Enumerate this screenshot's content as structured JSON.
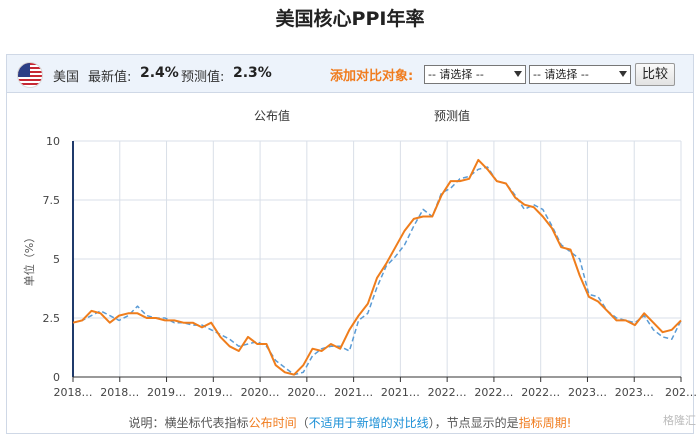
{
  "page": {
    "title": "美国核心PPI年率"
  },
  "toolbar": {
    "country": "美国",
    "latest_label": "最新值:",
    "latest_value": "2.4%",
    "forecast_label": "预测值:",
    "forecast_value": "2.3%",
    "compare_label": "添加对比对象:",
    "select1": "-- 请选择 --",
    "select2": "-- 请选择 --",
    "compare_button": "比较",
    "flag_icon": "us-flag-icon"
  },
  "colors": {
    "actual": "#ef7d1c",
    "forecast": "#5a9bd5",
    "grid": "#d9dfe8",
    "accent": "#f07c1e"
  },
  "footnote": {
    "prefix": "说明：横坐标代表指标",
    "publish_time": "公布时间",
    "open_paren": "（",
    "not_applicable": "不适用于新增的对比线",
    "close_paren": "），节点显示的是",
    "indicator_period": "指标周期",
    "suffix": "!"
  },
  "watermark": "格隆汇",
  "chart_data": {
    "type": "line",
    "ylabel": "单位（%）",
    "ylim": [
      0,
      10
    ],
    "yticks": [
      "0",
      "2.5",
      "5",
      "7.5",
      "10"
    ],
    "xtick_labels": [
      "2018…",
      "2018…",
      "2019…",
      "2019…",
      "2020…",
      "2020…",
      "2021…",
      "2021…",
      "2022…",
      "2022…",
      "2022…",
      "2023…",
      "2023…",
      "202…"
    ],
    "grid": true,
    "legend_position": "top-center",
    "x_count": 67,
    "series": [
      {
        "name": "公布值",
        "style": "solid",
        "values": [
          2.3,
          2.4,
          2.8,
          2.7,
          2.3,
          2.6,
          2.7,
          2.7,
          2.5,
          2.5,
          2.4,
          2.4,
          2.3,
          2.3,
          2.1,
          2.3,
          1.7,
          1.3,
          1.1,
          1.7,
          1.4,
          1.4,
          0.5,
          0.2,
          0.1,
          0.5,
          1.2,
          1.1,
          1.4,
          1.2,
          2.0,
          2.6,
          3.1,
          4.2,
          4.8,
          5.5,
          6.2,
          6.7,
          6.8,
          6.8,
          7.7,
          8.3,
          8.3,
          8.4,
          9.2,
          8.8,
          8.3,
          8.2,
          7.6,
          7.3,
          7.2,
          6.8,
          6.3,
          5.5,
          5.4,
          4.3,
          3.4,
          3.2,
          2.8,
          2.4,
          2.4,
          2.2,
          2.7,
          2.3,
          1.9,
          2.0,
          2.4
        ]
      },
      {
        "name": "预测值",
        "style": "dashed",
        "values": [
          2.3,
          2.4,
          2.6,
          2.8,
          2.6,
          2.4,
          2.6,
          3.0,
          2.6,
          2.5,
          2.5,
          2.3,
          2.3,
          2.2,
          2.2,
          2.0,
          1.8,
          1.6,
          1.3,
          1.4,
          1.5,
          1.3,
          0.7,
          0.4,
          0.1,
          0.2,
          0.9,
          1.2,
          1.3,
          1.3,
          1.1,
          2.4,
          2.7,
          3.8,
          4.7,
          5.1,
          5.6,
          6.4,
          7.1,
          6.8,
          7.8,
          8.0,
          8.4,
          8.5,
          8.8,
          8.9,
          8.3,
          8.2,
          7.7,
          7.1,
          7.3,
          7.1,
          6.4,
          5.6,
          5.3,
          5.0,
          3.5,
          3.4,
          2.8,
          2.5,
          2.4,
          2.3,
          2.6,
          2.0,
          1.7,
          1.6,
          2.4
        ]
      }
    ]
  }
}
